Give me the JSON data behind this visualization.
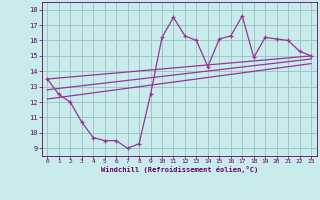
{
  "xlabel": "Windchill (Refroidissement éolien,°C)",
  "bg_color": "#c8ecec",
  "line_color": "#993399",
  "grid_color": "#aadddd",
  "xlim": [
    -0.5,
    23.5
  ],
  "ylim": [
    8.5,
    18.5
  ],
  "xticks": [
    0,
    1,
    2,
    3,
    4,
    5,
    6,
    7,
    8,
    9,
    10,
    11,
    12,
    13,
    14,
    15,
    16,
    17,
    18,
    19,
    20,
    21,
    22,
    23
  ],
  "yticks": [
    9,
    10,
    11,
    12,
    13,
    14,
    15,
    16,
    17,
    18
  ],
  "main_x": [
    0,
    1,
    2,
    3,
    4,
    5,
    6,
    7,
    8,
    9,
    10,
    11,
    12,
    13,
    14,
    15,
    16,
    17,
    18,
    19,
    20,
    21,
    22,
    23
  ],
  "main_y": [
    13.5,
    12.5,
    12.0,
    10.7,
    9.7,
    9.5,
    9.5,
    9.0,
    9.3,
    12.5,
    16.2,
    17.5,
    16.3,
    16.0,
    14.3,
    16.1,
    16.3,
    17.6,
    14.9,
    16.2,
    16.1,
    16.0,
    15.3,
    15.0
  ],
  "trend1_x": [
    0,
    23
  ],
  "trend1_y": [
    13.5,
    15.0
  ],
  "trend2_x": [
    0,
    23
  ],
  "trend2_y": [
    12.8,
    14.8
  ],
  "trend3_x": [
    0,
    23
  ],
  "trend3_y": [
    12.2,
    14.5
  ]
}
